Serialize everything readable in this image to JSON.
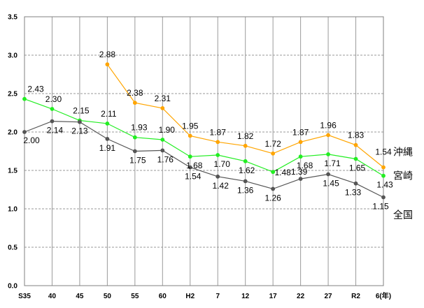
{
  "chart_data": {
    "type": "line",
    "title": "",
    "xlabel": "",
    "ylabel": "",
    "ylim": [
      0,
      3.5
    ],
    "yticks": [
      "0.0",
      "0.5",
      "1.0",
      "1.5",
      "2.0",
      "2.5",
      "3.0",
      "3.5"
    ],
    "categories": [
      "S35",
      "40",
      "45",
      "50",
      "55",
      "60",
      "H2",
      "7",
      "12",
      "17",
      "22",
      "27",
      "R2",
      "6(年)"
    ],
    "grid": "vertical gray dashed and horizontal gray dashed",
    "legend": "series names at right end of lines",
    "series": [
      {
        "name": "沖縄",
        "color": "#FFA500",
        "values": [
          null,
          null,
          null,
          2.88,
          2.38,
          2.31,
          1.95,
          1.87,
          1.82,
          1.72,
          1.87,
          1.96,
          1.83,
          1.54
        ],
        "labels": [
          null,
          null,
          null,
          "2.88",
          "2.38",
          "2.31",
          "1.95",
          "1.87",
          "1.82",
          "1.72",
          "1.87",
          "1.96",
          "1.83",
          "1.54"
        ]
      },
      {
        "name": "宮崎",
        "color": "#22EE22",
        "values": [
          2.43,
          2.3,
          2.15,
          2.11,
          1.93,
          1.9,
          1.68,
          1.7,
          1.62,
          1.48,
          1.68,
          1.71,
          1.65,
          1.43
        ],
        "labels": [
          "2.43",
          "2.30",
          "2.15",
          "2.11",
          "1.93",
          "1.90",
          "1.68",
          "1.70",
          "1.62",
          "1.48",
          "1.68",
          "1.71",
          "1.65",
          "1.43"
        ]
      },
      {
        "name": "全国",
        "color": "#555555",
        "values": [
          2.0,
          2.14,
          2.13,
          1.91,
          1.75,
          1.76,
          1.54,
          1.42,
          1.36,
          1.26,
          1.39,
          1.45,
          1.33,
          1.15
        ],
        "labels": [
          "2.00",
          "2.14",
          "2.13",
          "1.91",
          "1.75",
          "1.76",
          "1.54",
          "1.42",
          "1.36",
          "1.26",
          "1.39",
          "1.45",
          "1.33",
          "1.15"
        ]
      }
    ]
  }
}
